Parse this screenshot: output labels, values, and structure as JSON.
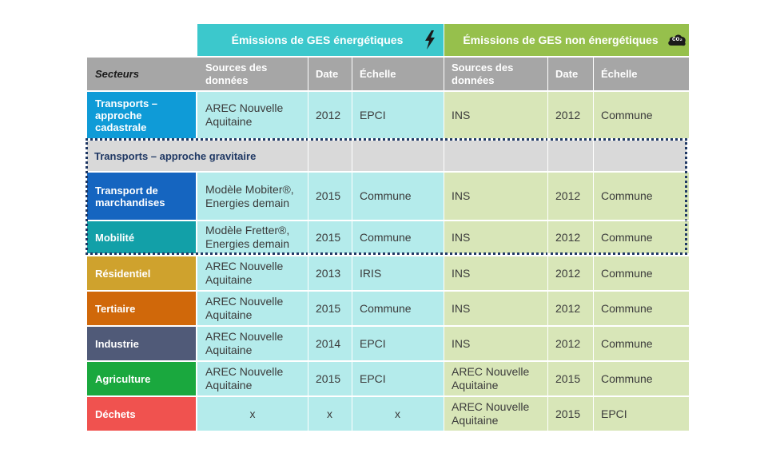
{
  "header_groups": {
    "energetic": {
      "title": "Émissions de GES énergétiques",
      "icon": "lightning-bolt-icon",
      "color": "#3cc8cc"
    },
    "non_energetic": {
      "title": "Émissions de GES non énergétiques",
      "icon": "co2-cloud-icon",
      "icon_text": "co₂",
      "color": "#96c04c"
    }
  },
  "columns": {
    "sector": "Secteurs",
    "e_sources": "Sources des données",
    "e_date": "Date",
    "e_scale": "Échelle",
    "n_sources": "Sources des données",
    "n_date": "Date",
    "n_scale": "Échelle"
  },
  "banner": "Transports – approche gravitaire",
  "rows": [
    {
      "sector": "Transports – approche cadastrale",
      "color": "#0f9bd7",
      "e_src": "AREC Nouvelle Aquitaine",
      "e_date": "2012",
      "e_scale": "EPCI",
      "n_src": "INS",
      "n_date": "2012",
      "n_scale": "Commune"
    },
    {
      "sector": "Transport de marchandises",
      "color": "#1565c0",
      "e_src": "Modèle Mobiter®, Energies demain",
      "e_date": "2015",
      "e_scale": "Commune",
      "n_src": "INS",
      "n_date": "2012",
      "n_scale": "Commune"
    },
    {
      "sector": "Mobilité",
      "color": "#12a0a8",
      "e_src": "Modèle Fretter®, Energies demain",
      "e_date": "2015",
      "e_scale": "Commune",
      "n_src": "INS",
      "n_date": "2012",
      "n_scale": "Commune"
    },
    {
      "sector": "Résidentiel",
      "color": "#cfa22d",
      "e_src": "AREC Nouvelle Aquitaine",
      "e_date": "2013",
      "e_scale": "IRIS",
      "n_src": "INS",
      "n_date": "2012",
      "n_scale": "Commune"
    },
    {
      "sector": "Tertiaire",
      "color": "#d0680a",
      "e_src": "AREC Nouvelle Aquitaine",
      "e_date": "2015",
      "e_scale": "Commune",
      "n_src": "INS",
      "n_date": "2012",
      "n_scale": "Commune"
    },
    {
      "sector": "Industrie",
      "color": "#505a78",
      "e_src": "AREC Nouvelle Aquitaine",
      "e_date": "2014",
      "e_scale": "EPCI",
      "n_src": "INS",
      "n_date": "2012",
      "n_scale": "Commune"
    },
    {
      "sector": "Agriculture",
      "color": "#1aa83e",
      "e_src": "AREC Nouvelle Aquitaine",
      "e_date": "2015",
      "e_scale": "EPCI",
      "n_src": "AREC Nouvelle Aquitaine",
      "n_date": "2015",
      "n_scale": "Commune"
    },
    {
      "sector": "Déchets",
      "color": "#f0524f",
      "e_src": "x",
      "e_date": "x",
      "e_scale": "x",
      "n_src": "AREC Nouvelle Aquitaine",
      "n_date": "2015",
      "n_scale": "EPCI"
    }
  ]
}
